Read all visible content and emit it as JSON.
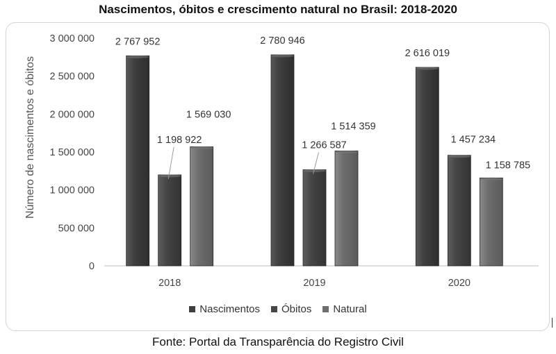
{
  "title": "Nascimentos, óbitos e crescimento natural no Brasil: 2018-2020",
  "caption": "Fonte: Portal da Transparência do Registro Civil",
  "chart_data": {
    "type": "bar",
    "categories": [
      "2018",
      "2019",
      "2020"
    ],
    "series": [
      {
        "name": "Nascimentos",
        "values": [
          2767952,
          2780946,
          2616019
        ],
        "labels": [
          "2 767 952",
          "2 780 946",
          "2 616 019"
        ],
        "color": "#3f3f3f"
      },
      {
        "name": "Óbitos",
        "values": [
          1198922,
          1266587,
          1457234
        ],
        "labels": [
          "1 198 922",
          "1 266 587",
          "1 457 234"
        ],
        "color": "#474747"
      },
      {
        "name": "Natural",
        "values": [
          1569030,
          1514359,
          1158785
        ],
        "labels": [
          "1 569 030",
          "1 514 359",
          "1 158 785"
        ],
        "color": "#6e6e6e"
      }
    ],
    "ylabel": "Número de nascimentos e óbitos",
    "ylim": [
      0,
      3000000
    ],
    "yticks": [
      0,
      500000,
      1000000,
      1500000,
      2000000,
      2500000,
      3000000
    ],
    "ytick_labels": [
      "0",
      "500 000",
      "1 000 000",
      "1 500 000",
      "2 000 000",
      "2 500 000",
      "3 000 000"
    ],
    "grid": false,
    "legend_position": "bottom"
  }
}
